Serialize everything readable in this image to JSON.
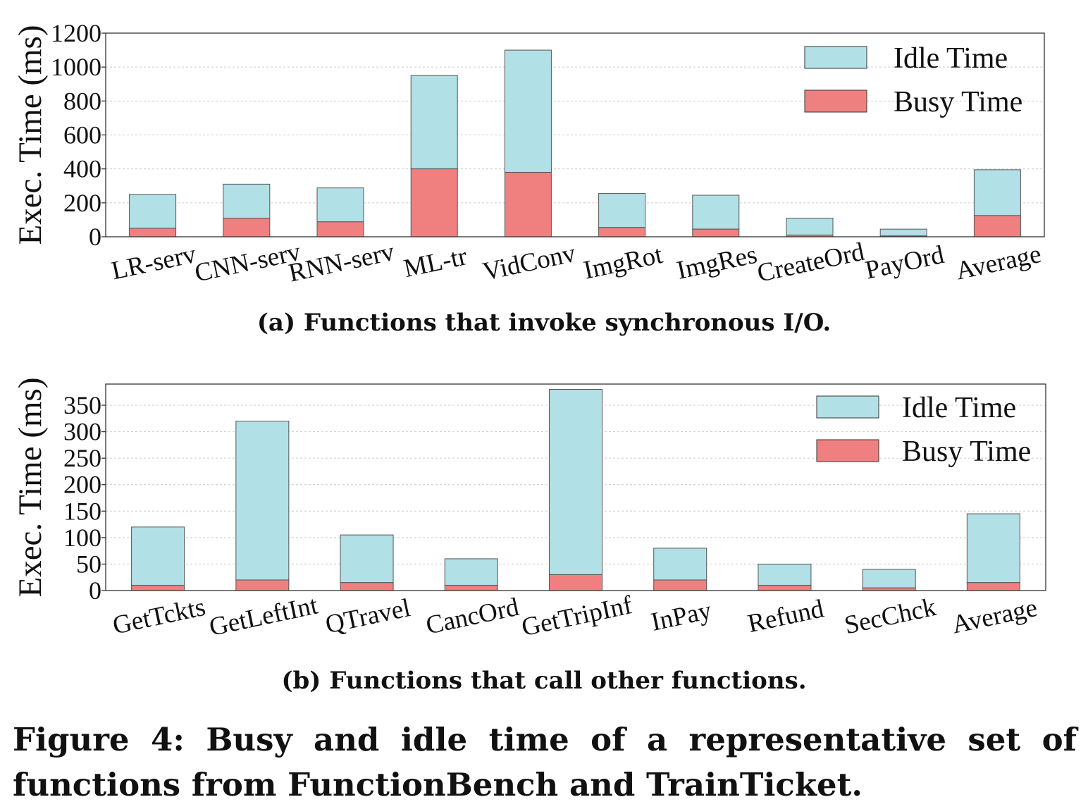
{
  "colors": {
    "idle": "#b1e0e6",
    "busy": "#f08080",
    "edge": "#555555",
    "grid": "#cccccc"
  },
  "chart_data": [
    {
      "type": "bar",
      "stacked": true,
      "ylabel": "Exec. Time (ms)",
      "ylim": [
        0,
        1200
      ],
      "yticks": [
        0,
        200,
        400,
        600,
        800,
        1000,
        1200
      ],
      "grid": true,
      "legend_position": "top-right",
      "categories": [
        "LR-serv",
        "CNN-serv",
        "RNN-serv",
        "ML-tr",
        "VidConv",
        "ImgRot",
        "ImgRes",
        "CreateOrd",
        "PayOrd",
        "Average"
      ],
      "series": [
        {
          "name": "Busy Time",
          "values": [
            50,
            110,
            88,
            400,
            380,
            55,
            45,
            10,
            5,
            125
          ]
        },
        {
          "name": "Idle Time",
          "values": [
            200,
            200,
            200,
            550,
            720,
            200,
            200,
            100,
            40,
            270
          ]
        }
      ],
      "caption": "(a) Functions that invoke synchronous I/O."
    },
    {
      "type": "bar",
      "stacked": true,
      "ylabel": "Exec. Time (ms)",
      "ylim": [
        0,
        390
      ],
      "yticks": [
        0,
        50,
        100,
        150,
        200,
        250,
        300,
        350
      ],
      "grid": true,
      "legend_position": "top-right",
      "categories": [
        "GetTckts",
        "GetLeftInt",
        "QTravel",
        "CancOrd",
        "GetTripInf",
        "InPay",
        "Refund",
        "SecChck",
        "Average"
      ],
      "series": [
        {
          "name": "Busy Time",
          "values": [
            10,
            20,
            15,
            10,
            30,
            20,
            10,
            5,
            15
          ]
        },
        {
          "name": "Idle Time",
          "values": [
            110,
            300,
            90,
            50,
            350,
            60,
            40,
            35,
            130
          ]
        }
      ],
      "caption": "(b) Functions that call other functions."
    }
  ],
  "figure_caption": "Figure 4: Busy and idle time of a representative set of functions from FunctionBench and TrainTicket."
}
